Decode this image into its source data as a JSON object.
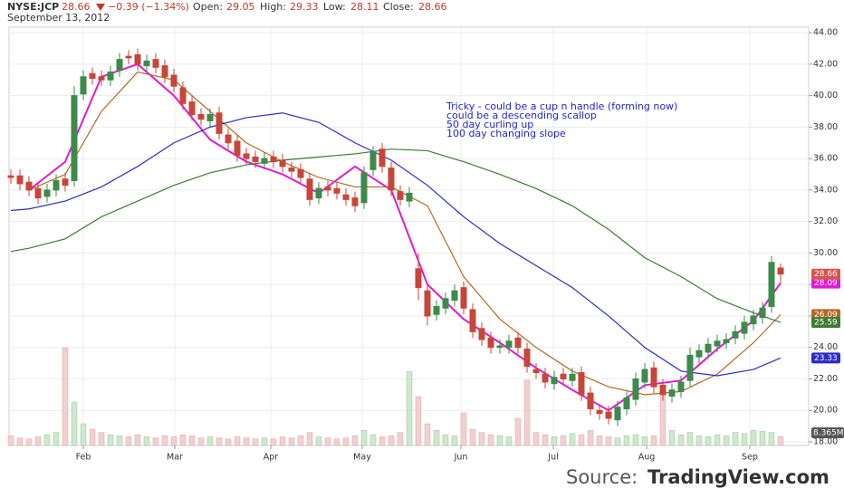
{
  "chart_data": {
    "type": "candlestick",
    "title": "NYSE:JCP",
    "subtitle": "September 13, 2012",
    "last": "28.66",
    "change": "−0.39 (−1.34%)",
    "quote": [
      {
        "label": "Open:",
        "value": "29.05"
      },
      {
        "label": "High:",
        "value": "29.33"
      },
      {
        "label": "Low:",
        "value": "28.11"
      },
      {
        "label": "Close:",
        "value": "28.66"
      }
    ],
    "annotation": [
      "Tricky - could be a cup n handle (forming now)",
      "could be a descending scallop",
      "50 day curling up",
      "100 day changing slope"
    ],
    "source": "Source:",
    "source_site": "TradingView.com",
    "up_color": "#3d8a4a",
    "down_color": "#c7463a",
    "ylim": [
      17.77,
      44.35
    ],
    "yticks": [
      {
        "value": 18,
        "label": "18.00"
      },
      {
        "value": 20,
        "label": "20.00"
      },
      {
        "value": 22,
        "label": "22.00"
      },
      {
        "value": 24,
        "label": "24.00"
      },
      {
        "value": 26,
        "label": "26.00"
      },
      {
        "value": 28,
        "label": "28.00"
      },
      {
        "value": 30,
        "label": "30.00"
      },
      {
        "value": 32,
        "label": "32.00"
      },
      {
        "value": 34,
        "label": "34.00"
      },
      {
        "value": 36,
        "label": "36.00"
      },
      {
        "value": 38,
        "label": "38.00"
      },
      {
        "value": 40,
        "label": "40.00"
      },
      {
        "value": 42,
        "label": "42.00"
      },
      {
        "value": 44,
        "label": "44.00"
      }
    ],
    "xlim": [
      -0.2,
      88.1
    ],
    "xticks": [
      {
        "value": 8,
        "label": "Feb"
      },
      {
        "value": 18.1,
        "label": "Mar"
      },
      {
        "value": 28.7,
        "label": "Apr"
      },
      {
        "value": 38.8,
        "label": "May"
      },
      {
        "value": 49.7,
        "label": "Jun"
      },
      {
        "value": 59.9,
        "label": "Jul"
      },
      {
        "value": 70.2,
        "label": "Aug"
      },
      {
        "value": 81.6,
        "label": "Sep"
      }
    ],
    "grid": true,
    "open": [
      34.9,
      34.9,
      34.5,
      34.1,
      33.6,
      34.0,
      34.7,
      34.6,
      40.1,
      41.4,
      41.2,
      41.0,
      41.6,
      42.5,
      42.6,
      41.9,
      42.3,
      41.9,
      41.3,
      40.5,
      39.6,
      38.8,
      38.4,
      38.9,
      37.5,
      37.1,
      36.3,
      36.1,
      35.7,
      36.1,
      35.9,
      35.4,
      35.3,
      34.7,
      33.5,
      34.2,
      34.1,
      33.7,
      33.5,
      33.2,
      35.3,
      36.6,
      35.4,
      33.9,
      33.3,
      29.0,
      27.6,
      26.1,
      26.5,
      27.0,
      27.8,
      26.4,
      25.2,
      24.6,
      24.0,
      24.0,
      24.6,
      23.9,
      22.6,
      22.3,
      21.7,
      22.3,
      21.9,
      22.4,
      21.1,
      20.0,
      19.9,
      19.4,
      20.1,
      20.7,
      21.8,
      22.7,
      21.6,
      20.9,
      21.2,
      21.9,
      23.4,
      23.7,
      24.1,
      24.3,
      24.6,
      24.9,
      25.5,
      25.9,
      26.6,
      29.05
    ],
    "high": [
      35.3,
      35.3,
      34.9,
      34.5,
      34.4,
      35.0,
      35.1,
      40.6,
      41.6,
      41.8,
      41.6,
      41.9,
      42.7,
      42.9,
      43.0,
      42.6,
      42.7,
      42.3,
      41.7,
      40.9,
      40.0,
      39.2,
      39.2,
      39.3,
      37.9,
      37.5,
      36.7,
      36.5,
      36.4,
      36.5,
      36.3,
      35.8,
      35.7,
      35.1,
      34.5,
      34.6,
      34.5,
      34.1,
      33.9,
      35.5,
      36.8,
      37.0,
      35.8,
      34.3,
      34.2,
      30.0,
      28.0,
      27.0,
      27.5,
      28.0,
      28.2,
      26.8,
      25.6,
      25.0,
      24.5,
      24.8,
      25.0,
      24.3,
      23.0,
      22.7,
      22.5,
      22.7,
      22.7,
      22.8,
      21.5,
      20.4,
      20.3,
      20.6,
      21.2,
      22.4,
      23.0,
      23.1,
      22.0,
      21.7,
      22.2,
      24.0,
      24.2,
      24.6,
      24.8,
      24.9,
      25.4,
      26.0,
      26.4,
      26.9,
      29.8,
      29.33
    ],
    "low": [
      34.4,
      34.0,
      33.6,
      33.1,
      33.2,
      33.6,
      33.9,
      34.2,
      39.7,
      40.7,
      40.6,
      40.6,
      41.2,
      42.0,
      41.6,
      41.5,
      41.4,
      40.8,
      40.2,
      39.1,
      38.4,
      38.1,
      38.0,
      37.2,
      36.6,
      35.8,
      35.6,
      35.4,
      35.3,
      35.4,
      35.1,
      34.8,
      34.4,
      33.0,
      33.1,
      33.6,
      33.4,
      33.0,
      32.6,
      32.8,
      34.9,
      35.1,
      33.6,
      33.0,
      32.9,
      27.0,
      25.4,
      25.7,
      26.1,
      26.6,
      26.1,
      24.6,
      24.1,
      23.6,
      23.6,
      23.6,
      23.6,
      22.4,
      22.0,
      21.4,
      21.3,
      21.6,
      21.5,
      20.6,
      19.7,
      19.4,
      19.1,
      19.0,
      19.7,
      20.3,
      21.4,
      21.1,
      20.6,
      20.5,
      20.8,
      21.5,
      23.0,
      23.3,
      23.7,
      23.9,
      24.2,
      24.5,
      25.1,
      25.5,
      26.2,
      28.11
    ],
    "close": [
      34.8,
      34.4,
      34.0,
      33.5,
      34.0,
      34.6,
      34.3,
      40.0,
      41.2,
      41.1,
      41.0,
      41.5,
      42.3,
      42.4,
      42.0,
      42.2,
      41.8,
      41.2,
      40.6,
      39.5,
      38.8,
      38.5,
      38.8,
      37.6,
      37.0,
      36.2,
      36.0,
      35.8,
      36.0,
      35.8,
      35.5,
      35.2,
      34.8,
      33.4,
      34.1,
      34.0,
      33.8,
      33.4,
      33.0,
      35.1,
      36.4,
      35.5,
      34.0,
      33.4,
      33.8,
      27.8,
      26.0,
      26.6,
      27.1,
      27.6,
      26.5,
      25.0,
      24.5,
      24.0,
      24.1,
      24.4,
      24.0,
      22.8,
      22.4,
      21.8,
      22.1,
      22.0,
      22.3,
      21.0,
      20.1,
      19.8,
      19.5,
      20.2,
      20.8,
      22.0,
      22.6,
      21.5,
      21.0,
      21.3,
      21.8,
      23.5,
      23.8,
      24.2,
      24.4,
      24.5,
      25.0,
      25.6,
      26.0,
      26.5,
      29.4,
      28.66
    ],
    "close_color": "#d9534f",
    "volume": {
      "values": [
        9,
        7,
        6,
        8,
        10,
        12,
        90,
        40,
        20,
        15,
        12,
        10,
        9,
        8,
        10,
        8,
        7,
        9,
        8,
        10,
        9,
        7,
        8,
        7,
        6,
        8,
        7,
        6,
        7,
        6,
        8,
        7,
        9,
        12,
        8,
        7,
        6,
        7,
        9,
        14,
        10,
        8,
        9,
        12,
        68,
        45,
        20,
        14,
        10,
        9,
        30,
        15,
        12,
        10,
        9,
        8,
        25,
        60,
        12,
        10,
        8,
        9,
        11,
        10,
        14,
        9,
        8,
        7,
        9,
        10,
        8,
        9,
        50,
        14,
        10,
        12,
        9,
        8,
        10,
        9,
        12,
        11,
        14,
        13,
        12,
        8.365
      ],
      "last_label": "8.365M",
      "up_color": "#cfe6cf",
      "down_color": "#f0d0d0"
    },
    "series": [
      {
        "color": "#e21ad2",
        "x": [
          2,
          6,
          10,
          14,
          18,
          22,
          26,
          30,
          34,
          38,
          42,
          46,
          50,
          54,
          58,
          62,
          66,
          70,
          74,
          78,
          82,
          85
        ],
        "values": [
          34.0,
          35.8,
          41.2,
          42.0,
          40.0,
          37.2,
          35.8,
          35.0,
          33.8,
          35.5,
          34.0,
          28.0,
          25.8,
          24.3,
          22.7,
          21.3,
          20.0,
          21.6,
          21.9,
          23.9,
          25.7,
          28.09
        ]
      },
      {
        "color": "#b36a24",
        "x": [
          2,
          6,
          10,
          14,
          18,
          22,
          26,
          30,
          34,
          38,
          42,
          46,
          50,
          54,
          58,
          62,
          66,
          70,
          74,
          78,
          82,
          85
        ],
        "values": [
          34.0,
          35.0,
          39.0,
          41.5,
          41.0,
          39.0,
          37.0,
          35.8,
          34.8,
          34.2,
          34.2,
          33.0,
          28.5,
          25.8,
          24.0,
          22.5,
          21.5,
          21.0,
          21.2,
          22.3,
          24.3,
          26.09
        ]
      },
      {
        "color": "#2c2cc8",
        "x": [
          0,
          2,
          6,
          10,
          14,
          18,
          22,
          26,
          30,
          34,
          38,
          42,
          46,
          50,
          54,
          58,
          62,
          66,
          70,
          74,
          78,
          82,
          85
        ],
        "values": [
          32.7,
          32.8,
          33.3,
          34.2,
          35.5,
          37.0,
          38.0,
          38.6,
          38.9,
          38.3,
          37.0,
          35.9,
          34.3,
          32.3,
          30.6,
          29.2,
          27.8,
          26.0,
          24.0,
          22.5,
          22.2,
          22.6,
          23.33
        ]
      },
      {
        "color": "#3f7a35",
        "x": [
          0,
          2,
          6,
          10,
          14,
          18,
          22,
          26,
          30,
          34,
          38,
          42,
          46,
          50,
          54,
          58,
          62,
          66,
          70,
          74,
          78,
          82,
          85
        ],
        "values": [
          30.1,
          30.3,
          30.9,
          32.3,
          33.3,
          34.3,
          35.1,
          35.6,
          35.9,
          36.1,
          36.3,
          36.6,
          36.5,
          35.8,
          35.0,
          34.1,
          33.0,
          31.5,
          29.7,
          28.5,
          27.1,
          26.2,
          25.59
        ]
      }
    ]
  }
}
